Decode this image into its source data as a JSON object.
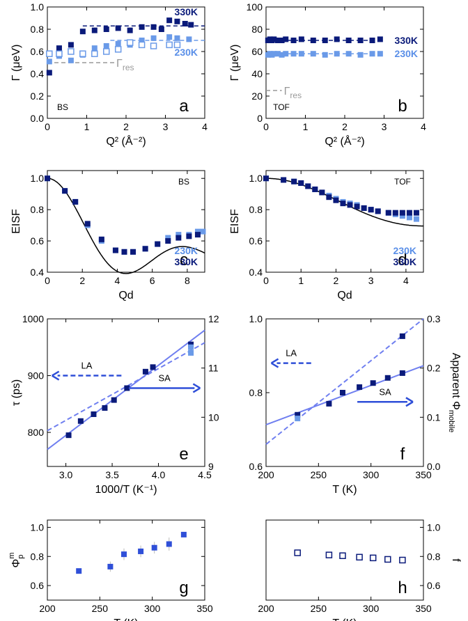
{
  "colors": {
    "dark": "#0a1a7a",
    "light": "#6a9ae8",
    "mid": "#2f4fd8",
    "gray": "#999999",
    "line": "#6f7ff0"
  },
  "chart_data": [
    {
      "id": "a",
      "type": "scatter",
      "letter": "a",
      "tag": "BS",
      "xlabel": "Q² (Å⁻²)",
      "ylabel": "Γ (μeV)",
      "xlim": [
        0,
        4
      ],
      "ylim": [
        0,
        1.0
      ],
      "xticks": [
        0,
        1,
        2,
        3,
        4
      ],
      "yticks": [
        0.0,
        0.2,
        0.4,
        0.6,
        0.8,
        1.0
      ],
      "series": [
        {
          "name": "330K",
          "color": "dark",
          "label": "330K",
          "x": [
            0.05,
            0.3,
            0.6,
            0.9,
            1.2,
            1.5,
            1.8,
            2.1,
            2.4,
            2.7,
            2.9,
            3.1,
            3.3,
            3.5,
            3.65
          ],
          "y": [
            0.41,
            0.63,
            0.66,
            0.78,
            0.79,
            0.8,
            0.81,
            0.79,
            0.82,
            0.82,
            0.8,
            0.88,
            0.87,
            0.85,
            0.84
          ],
          "fit": 0.83
        },
        {
          "name": "230K",
          "color": "light",
          "label": "230K",
          "x": [
            0.05,
            0.3,
            0.6,
            0.9,
            1.2,
            1.5,
            1.8,
            2.1,
            2.4,
            2.7,
            3.1,
            3.3,
            3.6
          ],
          "y": [
            0.51,
            0.56,
            0.52,
            0.57,
            0.63,
            0.65,
            0.67,
            0.66,
            0.7,
            0.72,
            0.73,
            0.72,
            0.71
          ],
          "fit": 0.7
        },
        {
          "name": "230K-open",
          "color": "light",
          "open": true,
          "x": [
            0.05,
            0.3,
            0.6,
            0.9,
            1.2,
            1.5,
            1.8,
            2.1,
            2.4,
            2.7,
            3.1,
            3.3
          ],
          "y": [
            0.58,
            0.58,
            0.6,
            0.58,
            0.58,
            0.6,
            0.62,
            0.68,
            0.66,
            0.65,
            0.66,
            0.66
          ]
        }
      ],
      "reference": {
        "label": "Γ",
        "sub": "res",
        "y": 0.5,
        "x0": 0.0,
        "x1": 1.7
      }
    },
    {
      "id": "b",
      "type": "scatter",
      "letter": "b",
      "tag": "TOF",
      "xlabel": "Q² (Å⁻²)",
      "ylabel": "Γ (μeV)",
      "xlim": [
        0,
        4
      ],
      "ylim": [
        0,
        100
      ],
      "xticks": [
        0,
        1,
        2,
        3,
        4
      ],
      "yticks": [
        0,
        20,
        40,
        60,
        80,
        100
      ],
      "series": [
        {
          "name": "330K",
          "color": "dark",
          "label": "330K",
          "x": [
            0.05,
            0.1,
            0.15,
            0.2,
            0.3,
            0.4,
            0.5,
            0.7,
            0.9,
            1.2,
            1.5,
            1.8,
            2.1,
            2.4,
            2.7,
            2.9
          ],
          "y": [
            70,
            71,
            70,
            71,
            70,
            70,
            71,
            70,
            71,
            70,
            70,
            71,
            70,
            70,
            70,
            71
          ],
          "fit": 70
        },
        {
          "name": "230K",
          "color": "light",
          "label": "230K",
          "x": [
            0.05,
            0.1,
            0.15,
            0.2,
            0.3,
            0.4,
            0.5,
            0.7,
            0.9,
            1.2,
            1.5,
            1.8,
            2.1,
            2.4,
            2.7,
            2.9
          ],
          "y": [
            57,
            58,
            57,
            58,
            58,
            57,
            58,
            58,
            58,
            58,
            57,
            58,
            58,
            57,
            58,
            58
          ],
          "fit": 58
        }
      ],
      "reference": {
        "label": "Γ",
        "sub": "res",
        "y": 25,
        "x0": 0.0,
        "x1": 0.4
      }
    },
    {
      "id": "c",
      "type": "scatter",
      "letter": "c",
      "tag": "BS",
      "xlabel": "Qd",
      "ylabel": "EISF",
      "xlim": [
        0,
        9
      ],
      "ylim": [
        0.4,
        1.05
      ],
      "xticks": [
        0,
        2,
        4,
        6,
        8
      ],
      "yticks": [
        0.4,
        0.6,
        0.8,
        1.0
      ],
      "series": [
        {
          "name": "230K",
          "color": "light",
          "label": "230K",
          "x": [
            0,
            1.0,
            1.6,
            2.3,
            3.1,
            3.9,
            4.4,
            4.9,
            5.6,
            6.3,
            6.9,
            7.5,
            8.1,
            8.6,
            8.9
          ],
          "y": [
            1.0,
            0.92,
            0.85,
            0.7,
            0.6,
            0.54,
            0.53,
            0.53,
            0.55,
            0.58,
            0.62,
            0.64,
            0.64,
            0.66,
            0.66
          ]
        },
        {
          "name": "330K",
          "color": "dark",
          "label": "330K",
          "x": [
            0,
            1.0,
            1.6,
            2.3,
            3.1,
            3.9,
            4.4,
            4.9,
            5.6,
            6.3,
            6.9,
            7.5,
            8.1,
            8.6
          ],
          "y": [
            1.0,
            0.92,
            0.85,
            0.71,
            0.61,
            0.54,
            0.53,
            0.53,
            0.55,
            0.58,
            0.6,
            0.62,
            0.63,
            0.64
          ]
        }
      ],
      "fit_curve": {
        "kind": "sinc",
        "a": 0.5,
        "b": 0.5
      }
    },
    {
      "id": "d",
      "type": "scatter",
      "letter": "d",
      "tag": "TOF",
      "xlabel": "Qd",
      "ylabel": "EISF",
      "xlim": [
        0,
        4.5
      ],
      "ylim": [
        0.4,
        1.05
      ],
      "xticks": [
        0,
        1,
        2,
        3,
        4
      ],
      "yticks": [
        0.4,
        0.6,
        0.8,
        1.0
      ],
      "series": [
        {
          "name": "230K",
          "color": "light",
          "label": "230K",
          "x": [
            0,
            0.5,
            0.8,
            1.0,
            1.2,
            1.4,
            1.6,
            1.8,
            2.0,
            2.2,
            2.4,
            2.6,
            2.8,
            3.0,
            3.2,
            3.5,
            3.7,
            3.9,
            4.1,
            4.3
          ],
          "y": [
            1.0,
            0.99,
            0.98,
            0.97,
            0.95,
            0.93,
            0.91,
            0.89,
            0.87,
            0.85,
            0.84,
            0.83,
            0.81,
            0.8,
            0.79,
            0.78,
            0.77,
            0.76,
            0.75,
            0.74
          ]
        },
        {
          "name": "330K",
          "color": "dark",
          "label": "330K",
          "x": [
            0,
            0.5,
            0.8,
            1.0,
            1.2,
            1.4,
            1.6,
            1.8,
            2.0,
            2.2,
            2.4,
            2.6,
            2.8,
            3.0,
            3.2,
            3.5,
            3.7,
            3.9,
            4.1,
            4.3
          ],
          "y": [
            1.0,
            0.99,
            0.98,
            0.97,
            0.95,
            0.93,
            0.91,
            0.88,
            0.86,
            0.84,
            0.83,
            0.82,
            0.81,
            0.8,
            0.79,
            0.78,
            0.78,
            0.78,
            0.78,
            0.78
          ]
        }
      ],
      "fit_curve": {
        "kind": "sinc",
        "a": 0.75,
        "b": 0.25
      }
    },
    {
      "id": "e",
      "type": "scatter",
      "letter": "e",
      "xlabel": "1000/T (K⁻¹)",
      "ylabel": "τ (ps)",
      "xlim": [
        2.8,
        4.5
      ],
      "ylim": [
        740,
        1000
      ],
      "xticks": [
        3.0,
        3.5,
        4.0,
        4.5
      ],
      "yticks": [
        800,
        900,
        1000
      ],
      "y2lim": [
        9,
        12
      ],
      "y2ticks": [
        9,
        10,
        11,
        12
      ],
      "series": [
        {
          "name": "tau",
          "color": "dark",
          "axis": "left",
          "x": [
            3.03,
            3.16,
            3.3,
            3.42,
            3.52,
            3.66,
            3.86,
            3.94,
            4.35
          ],
          "y": [
            795,
            820,
            832,
            843,
            857,
            878,
            907,
            915,
            955
          ]
        },
        {
          "name": "tau-light",
          "color": "light",
          "axis": "left",
          "x": [
            4.35,
            4.35
          ],
          "y": [
            940,
            950
          ]
        }
      ],
      "lines": [
        {
          "style": "dashed",
          "x": [
            2.8,
            4.5
          ],
          "y": [
            803,
            958
          ]
        },
        {
          "style": "solid",
          "x": [
            2.8,
            4.5
          ],
          "y": [
            770,
            980
          ]
        }
      ],
      "arrows": [
        {
          "label": "LA",
          "direction": "left",
          "x0": 3.6,
          "x1": 2.85,
          "y": 900
        },
        {
          "label": "SA",
          "direction": "right",
          "x0": 3.68,
          "x1": 4.45,
          "y": 878
        }
      ]
    },
    {
      "id": "f",
      "type": "scatter",
      "letter": "f",
      "xlabel": "T (K)",
      "ylabel": "",
      "xlim": [
        200,
        350
      ],
      "ylim": [
        0.6,
        1.0
      ],
      "xticks": [
        200,
        250,
        300,
        350
      ],
      "yticks": [
        0.6,
        0.8,
        1.0
      ],
      "y2label": "Apparent Φ",
      "y2sub": "mobile",
      "y2lim": [
        0,
        0.3
      ],
      "y2ticks": [
        0.0,
        0.1,
        0.2,
        0.3
      ],
      "series": [
        {
          "name": "phi-dark",
          "color": "dark",
          "axis": "left",
          "x": [
            230,
            260,
            273,
            289,
            302,
            316,
            330
          ],
          "y": [
            0.74,
            0.77,
            0.8,
            0.815,
            0.826,
            0.84,
            0.853
          ]
        },
        {
          "name": "phi-top",
          "color": "dark",
          "axis": "left",
          "x": [
            330
          ],
          "y": [
            0.953
          ]
        },
        {
          "name": "phi-light",
          "color": "light",
          "axis": "left",
          "x": [
            230
          ],
          "y": [
            0.73
          ]
        }
      ],
      "lines": [
        {
          "style": "solid",
          "x": [
            200,
            350
          ],
          "y": [
            0.713,
            0.873
          ]
        },
        {
          "style": "dashed",
          "x": [
            200,
            350
          ],
          "y": [
            0.66,
            1.0
          ]
        }
      ],
      "arrows": [
        {
          "label": "LA",
          "direction": "left",
          "x0": 243,
          "x1": 205,
          "y": 0.88
        },
        {
          "label": "SA",
          "direction": "right",
          "x0": 287,
          "x1": 340,
          "y": 0.775
        }
      ]
    },
    {
      "id": "g",
      "type": "scatter",
      "letter": "g",
      "xlabel": "T (K)",
      "ylabel": "Φ",
      "ylabel_sub": "p",
      "ylabel_sup": "m",
      "xlim": [
        200,
        350
      ],
      "ylim": [
        0.5,
        1.05
      ],
      "xticks": [
        200,
        250,
        300,
        350
      ],
      "yticks": [
        0.6,
        0.8,
        1.0
      ],
      "series": [
        {
          "name": "phi-p",
          "color": "mid",
          "x": [
            230,
            260,
            273,
            289,
            302,
            316,
            330
          ],
          "y": [
            0.7,
            0.73,
            0.815,
            0.835,
            0.86,
            0.885,
            0.95
          ],
          "err": [
            0.0,
            0.035,
            0.04,
            0.04,
            0.04,
            0.045,
            0.0
          ]
        }
      ]
    },
    {
      "id": "h",
      "type": "scatter",
      "letter": "h",
      "xlabel": "T (K)",
      "ylabel": "",
      "y2label": "f",
      "xlim": [
        200,
        350
      ],
      "ylim": [
        0.5,
        1.05
      ],
      "xticks": [
        200,
        250,
        300,
        350
      ],
      "yticks": [],
      "y2lim": [
        0.5,
        1.05
      ],
      "y2ticks": [
        0.6,
        0.8,
        1.0
      ],
      "series": [
        {
          "name": "f",
          "color": "dark",
          "open": true,
          "x": [
            230,
            260,
            273,
            289,
            302,
            316,
            330
          ],
          "y": [
            0.825,
            0.81,
            0.805,
            0.795,
            0.79,
            0.78,
            0.775
          ]
        }
      ]
    }
  ]
}
